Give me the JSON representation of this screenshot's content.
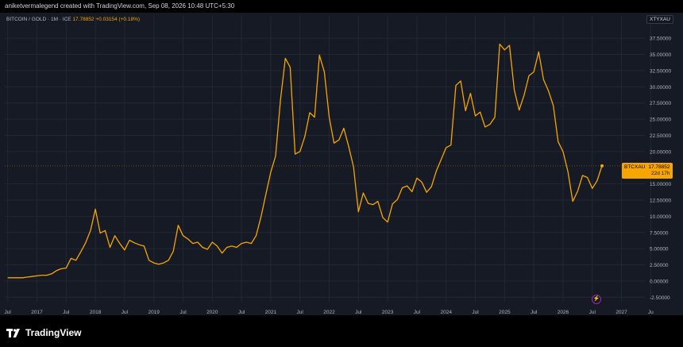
{
  "header": {
    "caption": "aniketvermalegend created with TradingView.com, Sep 08, 2026 10:48 UTC+5:30"
  },
  "legend": {
    "symbol": "BITCOIN / GOLD · 1M · ICE",
    "value": "17.78852",
    "change": "+0.03154 (+0.18%)"
  },
  "ticker_badge": "XTYXAU",
  "price_tag": {
    "symbol": "BTCXAU",
    "value": "17.78852",
    "countdown": "22d 17h"
  },
  "brand": "TradingView",
  "colors": {
    "line": "#f7a600",
    "background": "#161a25",
    "grid": "#232734",
    "axis_text": "#b2b5be"
  },
  "chart_data": {
    "type": "line",
    "series": [
      {
        "x": [
          2016.5,
          2016.583,
          2016.667,
          2016.75,
          2016.833,
          2016.917,
          2017.0,
          2017.083,
          2017.167,
          2017.25,
          2017.333,
          2017.417,
          2017.5,
          2017.583,
          2017.667,
          2017.75,
          2017.833,
          2017.917,
          2018.0,
          2018.083,
          2018.167,
          2018.25,
          2018.333,
          2018.417,
          2018.5,
          2018.583,
          2018.667,
          2018.75,
          2018.833,
          2018.917,
          2019.0,
          2019.083,
          2019.167,
          2019.25,
          2019.333,
          2019.417,
          2019.5,
          2019.583,
          2019.667,
          2019.75,
          2019.833,
          2019.917,
          2020.0,
          2020.083,
          2020.167,
          2020.25,
          2020.333,
          2020.417,
          2020.5,
          2020.583,
          2020.667,
          2020.75,
          2020.833,
          2020.917,
          2021.0,
          2021.083,
          2021.167,
          2021.25,
          2021.333,
          2021.417,
          2021.5,
          2021.583,
          2021.667,
          2021.75,
          2021.833,
          2021.917,
          2022.0,
          2022.083,
          2022.167,
          2022.25,
          2022.333,
          2022.417,
          2022.5,
          2022.583,
          2022.667,
          2022.75,
          2022.833,
          2022.917,
          2023.0,
          2023.083,
          2023.167,
          2023.25,
          2023.333,
          2023.417,
          2023.5,
          2023.583,
          2023.667,
          2023.75,
          2023.833,
          2023.917,
          2024.0,
          2024.083,
          2024.167,
          2024.25,
          2024.333,
          2024.417,
          2024.5,
          2024.583,
          2024.667,
          2024.75,
          2024.833,
          2024.917,
          2025.0,
          2025.083,
          2025.167,
          2025.25,
          2025.333,
          2025.417,
          2025.5,
          2025.583,
          2025.667,
          2025.75,
          2025.833,
          2025.917,
          2026.0,
          2026.083,
          2026.167,
          2026.25,
          2026.333,
          2026.417,
          2026.5,
          2026.583,
          2026.667
        ],
        "values": [
          0.5,
          0.5,
          0.5,
          0.5,
          0.6,
          0.7,
          0.8,
          0.9,
          0.9,
          1.1,
          1.6,
          1.9,
          2.0,
          3.5,
          3.2,
          4.5,
          5.9,
          7.8,
          11.1,
          7.4,
          7.8,
          5.2,
          7.0,
          5.8,
          4.8,
          6.3,
          5.9,
          5.6,
          5.4,
          3.2,
          2.8,
          2.6,
          2.8,
          3.2,
          4.6,
          8.6,
          7.0,
          6.5,
          5.8,
          6.0,
          5.2,
          4.9,
          6.0,
          5.4,
          4.3,
          5.2,
          5.4,
          5.2,
          5.8,
          6.0,
          5.8,
          7.0,
          9.9,
          13.4,
          16.8,
          19.3,
          28.0,
          34.4,
          33.0,
          19.6,
          20.0,
          22.3,
          26.0,
          25.3,
          34.9,
          32.3,
          25.3,
          21.3,
          21.8,
          23.6,
          20.8,
          17.6,
          10.7,
          13.6,
          12.0,
          11.8,
          12.3,
          9.8,
          9.1,
          11.9,
          12.6,
          14.4,
          14.7,
          13.8,
          15.9,
          15.3,
          13.7,
          14.6,
          17.0,
          18.8,
          20.6,
          21.0,
          30.2,
          30.9,
          26.3,
          29.0,
          25.5,
          26.1,
          23.8,
          24.2,
          25.3,
          36.6,
          35.7,
          36.4,
          29.5,
          26.4,
          28.7,
          31.7,
          32.3,
          35.4,
          31.1,
          29.4,
          27.1,
          21.5,
          20.0,
          16.9,
          12.3,
          13.9,
          16.3,
          16.0,
          14.3,
          15.5,
          17.8
        ]
      }
    ],
    "x_ticks": [
      "Jul",
      "2017",
      "Jul",
      "2018",
      "Jul",
      "2019",
      "Jul",
      "2020",
      "Jul",
      "2021",
      "Jul",
      "2022",
      "Jul",
      "2023",
      "Jul",
      "2024",
      "Jul",
      "2025",
      "Jul",
      "2026",
      "Jul",
      "2027",
      "Ju"
    ],
    "y_ticks": [
      "37.50000",
      "35.00000",
      "32.50000",
      "30.00000",
      "27.50000",
      "25.00000",
      "22.50000",
      "20.00000",
      "15.00000",
      "12.50000",
      "10.00000",
      "7.50000",
      "5.00000",
      "2.50000",
      "0.00000",
      "-2.50000"
    ],
    "ylim": [
      -3.2,
      38.5
    ],
    "xlim": [
      2016.45,
      2027.4
    ],
    "grid": true,
    "last_value": 17.78852
  }
}
